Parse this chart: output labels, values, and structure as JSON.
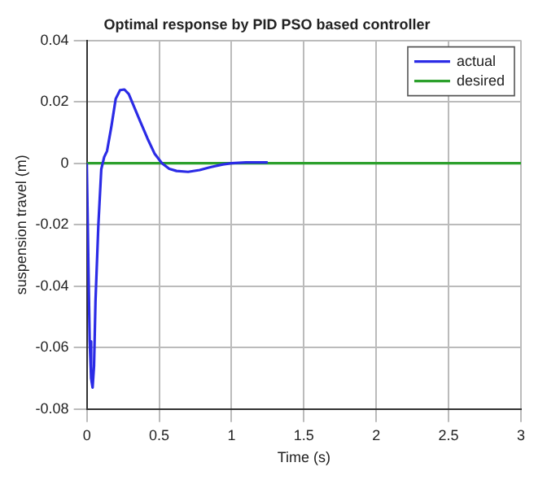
{
  "chart_data": {
    "type": "line",
    "title": "Optimal response by PID PSO based controller",
    "xlabel": "Time (s)",
    "ylabel": "suspension travel (m)",
    "xlim": [
      0,
      3
    ],
    "xticks": [
      0,
      0.5,
      1,
      1.5,
      2,
      2.5,
      3
    ],
    "ylim": [
      -0.08,
      0.04
    ],
    "yticks": [
      -0.08,
      -0.06,
      -0.04,
      -0.02,
      0,
      0.02,
      0.04
    ],
    "grid": true,
    "legend": "top right",
    "series": [
      {
        "name": "actual",
        "color": "#2b2be6",
        "x": [
          0,
          0.01,
          0.02,
          0.03,
          0.04,
          0.05,
          0.06,
          0.08,
          0.1,
          0.12,
          0.14,
          0.17,
          0.2,
          0.23,
          0.26,
          0.29,
          0.33,
          0.37,
          0.42,
          0.47,
          0.52,
          0.57,
          0.62,
          0.7,
          0.78,
          0.86,
          0.94,
          1.0,
          1.1,
          1.25
        ],
        "values": [
          0,
          -0.03,
          -0.058,
          -0.07,
          -0.073,
          -0.066,
          -0.045,
          -0.02,
          -0.002,
          0.002,
          0.004,
          0.012,
          0.021,
          0.0238,
          0.024,
          0.0225,
          0.018,
          0.0135,
          0.008,
          0.003,
          0.0,
          -0.0018,
          -0.0025,
          -0.0028,
          -0.0022,
          -0.0012,
          -0.0004,
          0,
          0.0003,
          0.0003
        ]
      },
      {
        "name": "desired",
        "color": "#2ca02c",
        "x": [
          0,
          3
        ],
        "values": [
          0,
          0
        ]
      }
    ]
  }
}
